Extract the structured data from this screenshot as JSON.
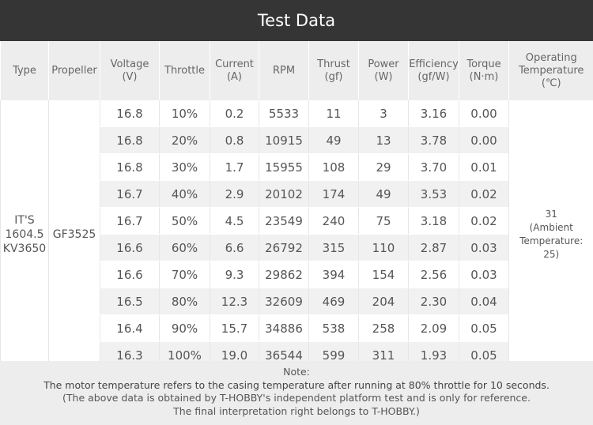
{
  "title": "Test Data",
  "table": {
    "header": [
      "Type",
      "Propeller",
      "Voltage\n(V)",
      "Throttle",
      "Current\n(A)",
      "RPM",
      "Thrust\n(gf)",
      "Power\n(W)",
      "Efficiency\n(gf/W)",
      "Torque\n(N·m)",
      "Operating\nTemperature\n(℃)"
    ],
    "type": "IT'S\n1604.5\nKV3650",
    "propeller": "GF3525",
    "temperature": "31\n(Ambient\nTemperature:\n25)",
    "rows": [
      [
        "16.8",
        "10%",
        "0.2",
        "5533",
        "11",
        "3",
        "3.16",
        "0.00"
      ],
      [
        "16.8",
        "20%",
        "0.8",
        "10915",
        "49",
        "13",
        "3.78",
        "0.00"
      ],
      [
        "16.8",
        "30%",
        "1.7",
        "15955",
        "108",
        "29",
        "3.70",
        "0.01"
      ],
      [
        "16.7",
        "40%",
        "2.9",
        "20102",
        "174",
        "49",
        "3.53",
        "0.02"
      ],
      [
        "16.7",
        "50%",
        "4.5",
        "23549",
        "240",
        "75",
        "3.18",
        "0.02"
      ],
      [
        "16.6",
        "60%",
        "6.6",
        "26792",
        "315",
        "110",
        "2.87",
        "0.03"
      ],
      [
        "16.6",
        "70%",
        "9.3",
        "29862",
        "394",
        "154",
        "2.56",
        "0.03"
      ],
      [
        "16.5",
        "80%",
        "12.3",
        "32609",
        "469",
        "204",
        "2.30",
        "0.04"
      ],
      [
        "16.4",
        "90%",
        "15.7",
        "34886",
        "538",
        "258",
        "2.09",
        "0.05"
      ],
      [
        "16.3",
        "100%",
        "19.0",
        "36544",
        "599",
        "311",
        "1.93",
        "0.05"
      ]
    ]
  },
  "note": {
    "heading": "Note:",
    "lines": [
      "The motor temperature refers to the casing temperature after running at 80% throttle for 10 seconds.",
      "(The above data is obtained by T-HOBBY's independent platform test and is only for reference.",
      "The final interpretation right belongs to T-HOBBY.)"
    ]
  }
}
